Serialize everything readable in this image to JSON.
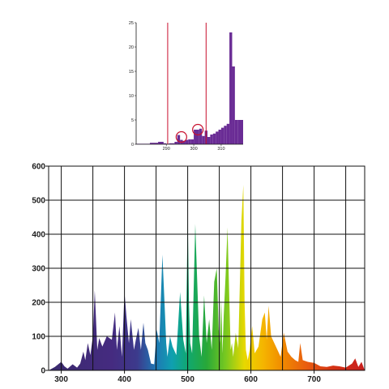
{
  "chart_data": [
    {
      "type": "bar",
      "x_ticks": [
        "290",
        "300",
        "310"
      ],
      "y_ticks": [
        "25",
        "20",
        "15",
        "10",
        "5",
        "0"
      ],
      "xlim": [
        279,
        318
      ],
      "ylim": [
        0,
        25
      ],
      "grid": false,
      "bins": [
        {
          "x0": 279,
          "x1": 284,
          "value": 0.1
        },
        {
          "x0": 284,
          "x1": 287,
          "value": 0.3
        },
        {
          "x0": 287,
          "x1": 289,
          "value": 0.5
        },
        {
          "x0": 289,
          "x1": 290,
          "value": 0.2
        },
        {
          "x0": 290,
          "x1": 291,
          "value": 0.1
        },
        {
          "x0": 291,
          "x1": 293,
          "value": 0.2
        },
        {
          "x0": 293,
          "x1": 294,
          "value": 0.5
        },
        {
          "x0": 294,
          "x1": 295,
          "value": 1.9
        },
        {
          "x0": 295,
          "x1": 296,
          "value": 0.9
        },
        {
          "x0": 296,
          "x1": 297,
          "value": 0.7
        },
        {
          "x0": 297,
          "x1": 298,
          "value": 0.9
        },
        {
          "x0": 298,
          "x1": 299,
          "value": 1.0
        },
        {
          "x0": 299,
          "x1": 300,
          "value": 1.0
        },
        {
          "x0": 300,
          "x1": 302,
          "value": 3.0
        },
        {
          "x0": 302,
          "x1": 303,
          "value": 3.2
        },
        {
          "x0": 303,
          "x1": 304,
          "value": 1.7
        },
        {
          "x0": 304,
          "x1": 305,
          "value": 2.8
        },
        {
          "x0": 305,
          "x1": 306,
          "value": 1.5
        },
        {
          "x0": 306,
          "x1": 307,
          "value": 2.0
        },
        {
          "x0": 307,
          "x1": 308,
          "value": 2.2
        },
        {
          "x0": 308,
          "x1": 309,
          "value": 2.6
        },
        {
          "x0": 309,
          "x1": 310,
          "value": 3.0
        },
        {
          "x0": 310,
          "x1": 311,
          "value": 3.4
        },
        {
          "x0": 311,
          "x1": 312,
          "value": 3.8
        },
        {
          "x0": 312,
          "x1": 313,
          "value": 4.2
        },
        {
          "x0": 313,
          "x1": 314,
          "value": 23.0
        },
        {
          "x0": 314,
          "x1": 315,
          "value": 16.0
        },
        {
          "x0": 315,
          "x1": 316,
          "value": 5.0
        },
        {
          "x0": 316,
          "x1": 318,
          "value": 5.0
        }
      ],
      "bar_color": "#6a2c95",
      "vlines": [
        290.5,
        304.5
      ],
      "vline_color": "#c8102e",
      "circles": [
        {
          "x": 295.5,
          "y": 1.5
        },
        {
          "x": 301.5,
          "y": 3.0
        }
      ],
      "circle_color": "#c8102e"
    },
    {
      "type": "area",
      "x_ticks": [
        "300",
        "400",
        "500",
        "600",
        "700"
      ],
      "y_ticks": [
        "600",
        "500",
        "400",
        "300",
        "200",
        "100",
        "0"
      ],
      "xlim": [
        280,
        780
      ],
      "ylim": [
        0,
        600
      ],
      "grid": true,
      "x": [
        280,
        290,
        300,
        305,
        310,
        318,
        325,
        330,
        335,
        338,
        342,
        346,
        350,
        353,
        357,
        360,
        365,
        372,
        380,
        385,
        388,
        392,
        396,
        400,
        403,
        407,
        410,
        415,
        418,
        422,
        426,
        430,
        433,
        437,
        442,
        447,
        451,
        455,
        460,
        464,
        466,
        468,
        472,
        476,
        482,
        488,
        493,
        497,
        500,
        502,
        504,
        507,
        512,
        518,
        522,
        526,
        530,
        534,
        538,
        542,
        546,
        549,
        551,
        553,
        555,
        557,
        560,
        563,
        566,
        568,
        570,
        572,
        576,
        580,
        585,
        588,
        590,
        592,
        595,
        598,
        602,
        606,
        612,
        618,
        622,
        625,
        628,
        632,
        637,
        642,
        647,
        652,
        658,
        664,
        670,
        675,
        678,
        682,
        690,
        700,
        710,
        720,
        730,
        740,
        750,
        760,
        765,
        770,
        775,
        780
      ],
      "y": [
        0,
        10,
        25,
        12,
        5,
        18,
        8,
        20,
        55,
        30,
        80,
        45,
        100,
        235,
        60,
        95,
        70,
        100,
        90,
        170,
        60,
        130,
        40,
        230,
        160,
        80,
        150,
        60,
        90,
        125,
        60,
        140,
        80,
        60,
        20,
        18,
        120,
        80,
        340,
        170,
        80,
        40,
        100,
        70,
        45,
        230,
        90,
        50,
        460,
        200,
        80,
        50,
        430,
        100,
        40,
        220,
        80,
        150,
        60,
        260,
        300,
        120,
        80,
        210,
        50,
        160,
        280,
        420,
        200,
        60,
        80,
        40,
        110,
        65,
        440,
        545,
        200,
        60,
        30,
        60,
        130,
        50,
        70,
        150,
        170,
        90,
        190,
        100,
        80,
        60,
        40,
        110,
        55,
        40,
        30,
        25,
        80,
        30,
        25,
        22,
        12,
        10,
        14,
        12,
        8,
        20,
        35,
        10,
        25,
        0
      ],
      "gradient": [
        {
          "offset": 0,
          "color": "#3a2a6e"
        },
        {
          "offset": 0.2,
          "color": "#452b80"
        },
        {
          "offset": 0.28,
          "color": "#3c3a8c"
        },
        {
          "offset": 0.34,
          "color": "#1e78b4"
        },
        {
          "offset": 0.39,
          "color": "#0fa0b0"
        },
        {
          "offset": 0.44,
          "color": "#10a870"
        },
        {
          "offset": 0.5,
          "color": "#28a838"
        },
        {
          "offset": 0.56,
          "color": "#78c820"
        },
        {
          "offset": 0.62,
          "color": "#e8d800"
        },
        {
          "offset": 0.68,
          "color": "#f5b400"
        },
        {
          "offset": 0.74,
          "color": "#f08a00"
        },
        {
          "offset": 0.82,
          "color": "#e85a10"
        },
        {
          "offset": 0.9,
          "color": "#d43214"
        },
        {
          "offset": 1,
          "color": "#c81e1e"
        }
      ]
    }
  ]
}
